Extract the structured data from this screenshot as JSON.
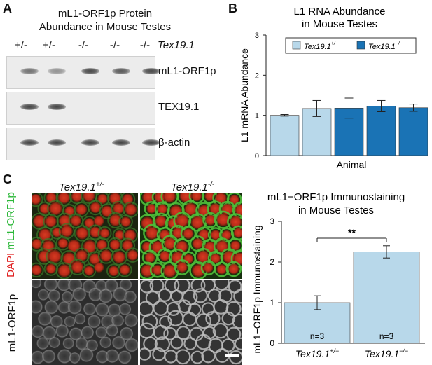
{
  "panel_a": {
    "letter": "A",
    "title_line1": "mL1-ORF1p Protein",
    "title_line2": "Abundance in Mouse Testes",
    "genotypes": [
      "+/-",
      "+/-",
      "-/-",
      "-/-",
      "-/-"
    ],
    "genotype_label": "Tex19.1",
    "rows": [
      {
        "label": "mL1-ORF1p",
        "band_intensity": [
          0.75,
          0.55,
          1.0,
          0.9,
          1.0
        ]
      },
      {
        "label": "TEX19.1",
        "band_intensity": [
          1.0,
          1.0,
          0,
          0,
          0
        ]
      },
      {
        "label": "β-actin",
        "band_intensity": [
          1.0,
          1.0,
          1.0,
          1.0,
          1.0
        ]
      }
    ]
  },
  "panel_b": {
    "letter": "B",
    "chart_data": {
      "type": "bar",
      "title": "L1 RNA Abundance in Mouse Testes",
      "xlabel": "Animal",
      "ylabel": "L1 mRNA Abundance",
      "ylim": [
        0,
        3
      ],
      "yticks": [
        "0",
        "1",
        "2",
        "3"
      ],
      "legend": [
        {
          "base": "Tex19.1",
          "sup": "+/−",
          "color": "#b8d8ea"
        },
        {
          "base": "Tex19.1",
          "sup": "−/−",
          "color": "#1a73b5"
        }
      ],
      "legend_position": "top",
      "bars": [
        {
          "group": "+/-",
          "value": 1.0,
          "error": 0.02
        },
        {
          "group": "+/-",
          "value": 1.17,
          "error": 0.2
        },
        {
          "group": "-/-",
          "value": 1.18,
          "error": 0.25
        },
        {
          "group": "-/-",
          "value": 1.23,
          "error": 0.14
        },
        {
          "group": "-/-",
          "value": 1.19,
          "error": 0.09
        }
      ]
    }
  },
  "panel_c": {
    "letter": "C",
    "col1": {
      "base": "Tex19.1",
      "sup": "+/-"
    },
    "col2": {
      "base": "Tex19.1",
      "sup": "-/-"
    },
    "side_label_top_red": "DAPI",
    "side_label_top_green": "mL1-ORF1p",
    "side_label_bottom": "mL1-ORF1p",
    "chart_data": {
      "type": "bar",
      "title": "mL1−ORF1p Immunostaining in Mouse Testes",
      "ylabel": "mL1−ORF1p Immunostaining",
      "ylim": [
        0,
        3
      ],
      "yticks": [
        "0",
        "1",
        "2",
        "3"
      ],
      "categories": [
        {
          "base": "Tex19.1",
          "sup": "+/−"
        },
        {
          "base": "Tex19.1",
          "sup": "−/−"
        }
      ],
      "values": [
        1.0,
        2.25
      ],
      "errors": [
        0.17,
        0.15
      ],
      "n_labels": [
        "n=3",
        "n=3"
      ],
      "significance": "**",
      "bar_color": "#b8d8ea"
    }
  }
}
